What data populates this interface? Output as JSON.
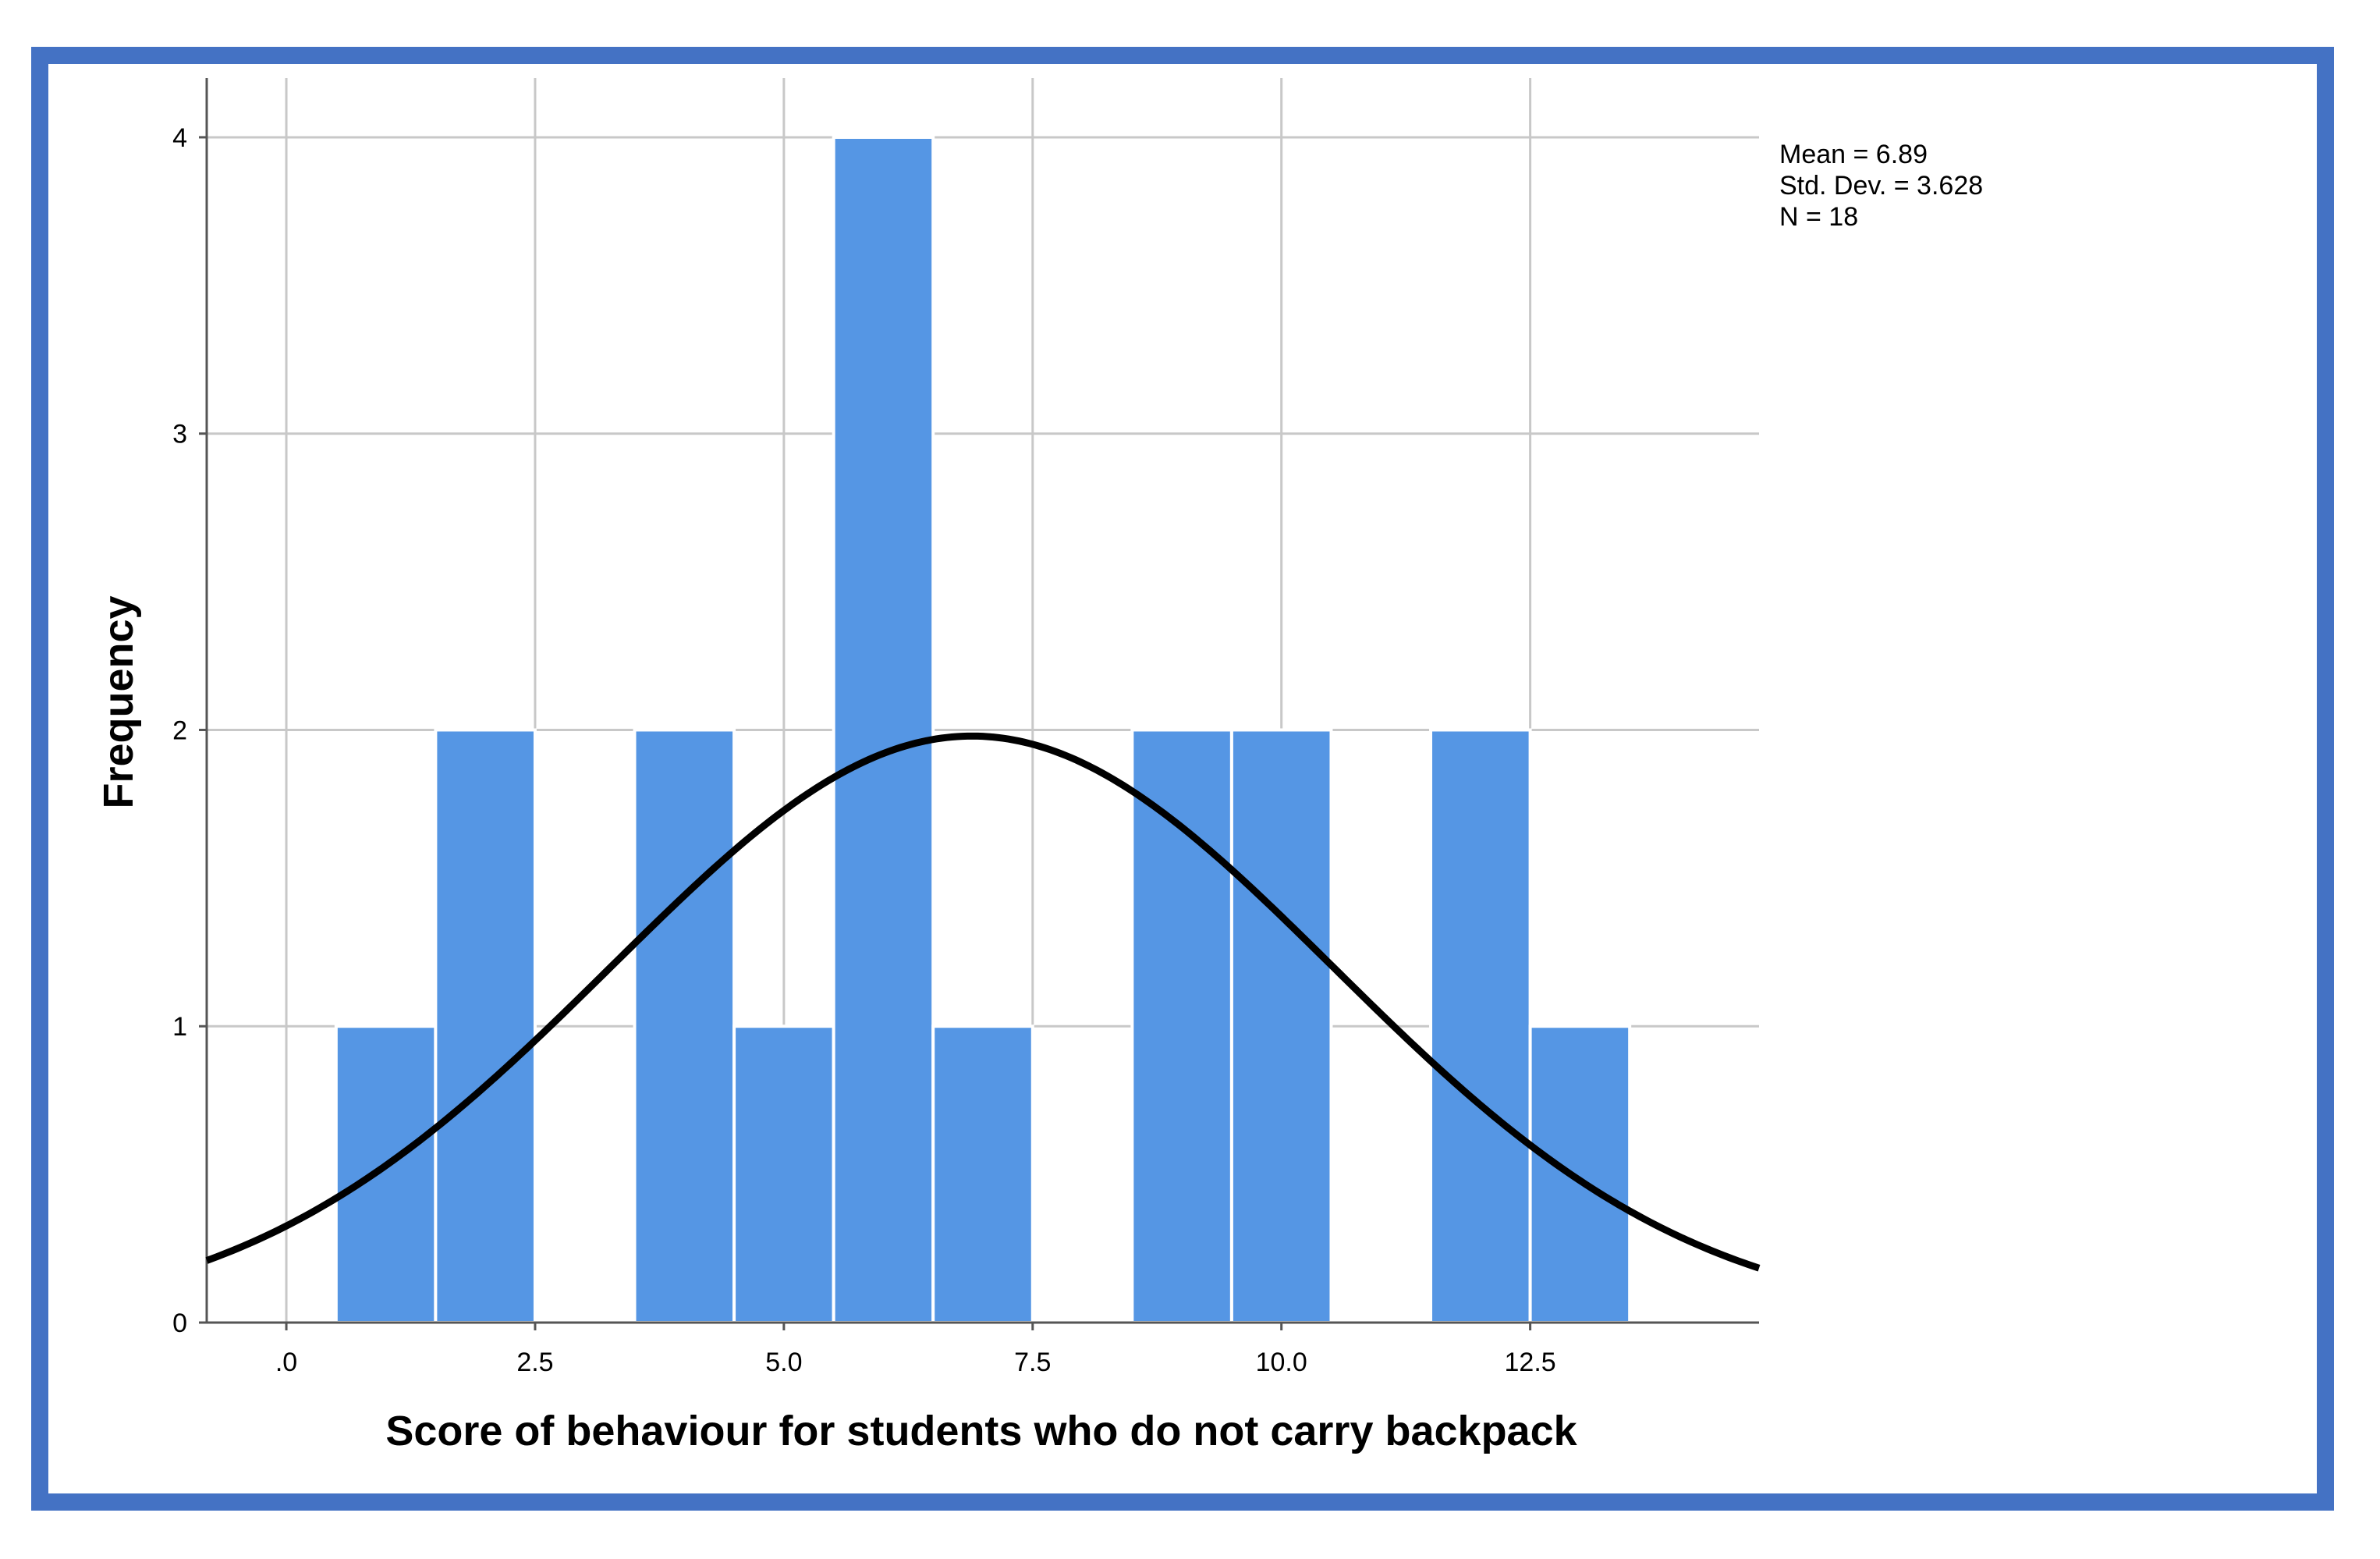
{
  "chart_data": {
    "type": "bar",
    "subtype": "histogram",
    "xlabel": "Score of behaviour for students who do not carry backpack",
    "ylabel": "Frequency",
    "xlim": [
      -0.8,
      14.8
    ],
    "ylim": [
      0,
      4.2
    ],
    "x_ticks": [
      0,
      2.5,
      5,
      7.5,
      10,
      12.5
    ],
    "x_tick_labels": [
      ".0",
      "2.5",
      "5.0",
      "7.5",
      "10.0",
      "12.5"
    ],
    "y_ticks": [
      0,
      1,
      2,
      3,
      4
    ],
    "y_tick_labels": [
      "0",
      "1",
      "2",
      "3",
      "4"
    ],
    "bin_width": 1,
    "bins": [
      {
        "center": 1,
        "count": 1
      },
      {
        "center": 2,
        "count": 2
      },
      {
        "center": 3,
        "count": 0
      },
      {
        "center": 4,
        "count": 2
      },
      {
        "center": 5,
        "count": 1
      },
      {
        "center": 6,
        "count": 4
      },
      {
        "center": 7,
        "count": 1
      },
      {
        "center": 8,
        "count": 0
      },
      {
        "center": 9,
        "count": 2
      },
      {
        "center": 10,
        "count": 2
      },
      {
        "center": 11,
        "count": 0
      },
      {
        "center": 12,
        "count": 2
      },
      {
        "center": 13,
        "count": 1
      }
    ],
    "normal_curve": {
      "mean": 6.89,
      "std_dev": 3.628,
      "n": 18
    },
    "stats": {
      "mean_text": "Mean = 6.89",
      "std_text": "Std. Dev. = 3.628",
      "n_text": "N = 18"
    },
    "grid": true,
    "colors": {
      "bar_fill": "#5596e4",
      "bar_edge": "#ffffff",
      "curve": "#000000",
      "grid": "#c8c8c8",
      "frame": "#4472c4"
    }
  }
}
